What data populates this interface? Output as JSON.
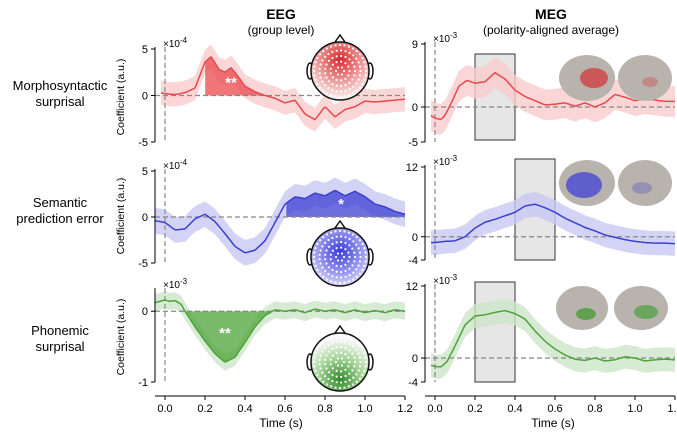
{
  "figure": {
    "columns": [
      {
        "title": "EEG",
        "subtitle": "(group level)"
      },
      {
        "title": "MEG",
        "subtitle": "(polarity-aligned average)"
      }
    ],
    "rows": [
      {
        "label_line1": "Morphosyntactic",
        "label_line2": "surprisal"
      },
      {
        "label_line1": "Semantic",
        "label_line2": "prediction error"
      },
      {
        "label_line1": "Phonemic",
        "label_line2": "surprisal"
      }
    ],
    "xlabel": "Time (s)",
    "ylabel": "Coefficient (a.u.)",
    "x_ticks": [
      "0.0",
      "0.2",
      "0.4",
      "0.6",
      "0.8",
      "1.0",
      "1.2"
    ],
    "x_tick_values": [
      0,
      0.2,
      0.4,
      0.6,
      0.8,
      1.0,
      1.2
    ],
    "colors": {
      "red": "#e8484c",
      "blue": "#3b3fd1",
      "green": "#4ea33a",
      "window_fill": "#e6e6e6",
      "zero_line": "#888888"
    }
  },
  "chart_data": [
    {
      "id": "eeg_morpho",
      "type": "line",
      "color": "red",
      "exponent_label": "×10",
      "exponent": "-4",
      "ylim": [
        -5,
        5
      ],
      "y_ticks": [
        -5,
        0,
        5
      ],
      "y_tick_labels": [
        "-5",
        "0",
        "5"
      ],
      "x": [
        -0.02,
        0.0,
        0.05,
        0.1,
        0.15,
        0.2,
        0.23,
        0.27,
        0.3,
        0.33,
        0.36,
        0.4,
        0.45,
        0.5,
        0.55,
        0.6,
        0.65,
        0.7,
        0.75,
        0.8,
        0.85,
        0.9,
        0.95,
        1.0,
        1.05,
        1.1,
        1.15,
        1.2
      ],
      "y": [
        0.3,
        0.2,
        0.1,
        0.3,
        0.8,
        3.6,
        4.2,
        2.8,
        2.5,
        3.0,
        2.2,
        1.0,
        0.4,
        0.0,
        -0.3,
        -0.8,
        -0.5,
        -2.0,
        -2.6,
        -1.2,
        -2.3,
        -1.5,
        -1.2,
        -0.6,
        -0.7,
        -0.6,
        -0.5,
        -0.4
      ],
      "band_halfwidth": 1.3,
      "sig_windows": [
        [
          0.2,
          0.5
        ]
      ],
      "sig_label": "**",
      "sig_label_x": 0.33,
      "sig_label_y": 1.3
    },
    {
      "id": "eeg_semantic",
      "type": "line",
      "color": "blue",
      "exponent_label": "×10",
      "exponent": "-4",
      "ylim": [
        -5,
        5
      ],
      "y_ticks": [
        -5,
        0,
        5
      ],
      "y_tick_labels": [
        "-5",
        "0",
        "5"
      ],
      "x": [
        -0.05,
        0.0,
        0.05,
        0.1,
        0.15,
        0.2,
        0.25,
        0.3,
        0.35,
        0.4,
        0.45,
        0.5,
        0.55,
        0.6,
        0.65,
        0.7,
        0.75,
        0.8,
        0.85,
        0.9,
        0.95,
        1.0,
        1.05,
        1.1,
        1.15,
        1.2
      ],
      "y": [
        -0.4,
        -0.6,
        -1.4,
        -1.3,
        -0.2,
        0.3,
        -0.5,
        -1.8,
        -3.2,
        -3.9,
        -3.6,
        -2.6,
        -0.6,
        1.4,
        2.2,
        2.0,
        2.6,
        2.3,
        2.9,
        2.3,
        2.8,
        2.2,
        1.4,
        1.1,
        0.6,
        0.3
      ],
      "band_halfwidth": 1.4,
      "sig_windows": [
        [
          0.6,
          1.2
        ]
      ],
      "sig_label": "*",
      "sig_label_x": 0.88,
      "sig_label_y": 1.3
    },
    {
      "id": "eeg_phonemic",
      "type": "line",
      "color": "green",
      "exponent_label": "×10",
      "exponent": "-3",
      "ylim": [
        -1,
        0.3
      ],
      "y_ticks": [
        -1,
        0
      ],
      "y_tick_labels": [
        "-1",
        "0"
      ],
      "x": [
        -0.05,
        0.0,
        0.02,
        0.05,
        0.08,
        0.1,
        0.15,
        0.2,
        0.25,
        0.3,
        0.35,
        0.4,
        0.45,
        0.5,
        0.55,
        0.6,
        0.65,
        0.7,
        0.75,
        0.8,
        0.85,
        0.9,
        0.95,
        1.0,
        1.05,
        1.1,
        1.15,
        1.2
      ],
      "y": [
        0.12,
        0.16,
        0.14,
        0.15,
        0.1,
        0.0,
        -0.22,
        -0.42,
        -0.6,
        -0.72,
        -0.65,
        -0.44,
        -0.22,
        -0.06,
        0.02,
        0.0,
        0.02,
        -0.02,
        0.03,
        0.0,
        0.02,
        -0.02,
        0.02,
        -0.02,
        0.01,
        -0.02,
        0.02,
        0.0
      ],
      "band_halfwidth": 0.12,
      "sig_windows": [
        [
          0.1,
          0.55
        ]
      ],
      "sig_label": "**",
      "sig_label_x": 0.3,
      "sig_label_y": -0.32
    },
    {
      "id": "meg_morpho",
      "type": "line",
      "color": "red",
      "exponent_label": "×10",
      "exponent": "-3",
      "ylim": [
        -5,
        9
      ],
      "y_ticks": [
        -5,
        0,
        9
      ],
      "y_tick_labels": [
        "-5",
        "0",
        "9"
      ],
      "x": [
        -0.02,
        0.0,
        0.03,
        0.05,
        0.08,
        0.12,
        0.16,
        0.2,
        0.25,
        0.3,
        0.35,
        0.4,
        0.45,
        0.5,
        0.55,
        0.6,
        0.65,
        0.7,
        0.75,
        0.8,
        0.85,
        0.9,
        0.95,
        1.0,
        1.05,
        1.1,
        1.15,
        1.2
      ],
      "y": [
        -1.2,
        -1.6,
        -1.8,
        -1.2,
        0.5,
        3.0,
        3.8,
        3.4,
        3.6,
        4.9,
        4.0,
        2.4,
        1.5,
        0.9,
        0.3,
        0.4,
        0.6,
        0.1,
        0.6,
        0.0,
        0.6,
        1.8,
        1.4,
        0.9,
        1.2,
        1.0,
        0.8,
        0.8
      ],
      "band_halfwidth": 2.2,
      "window": [
        0.2,
        0.4
      ]
    },
    {
      "id": "meg_semantic",
      "type": "line",
      "color": "blue",
      "exponent_label": "×10",
      "exponent": "-3",
      "ylim": [
        -4,
        12
      ],
      "y_ticks": [
        -4,
        0,
        12
      ],
      "y_tick_labels": [
        "-4",
        "0",
        "12"
      ],
      "x": [
        -0.02,
        0.0,
        0.05,
        0.1,
        0.15,
        0.2,
        0.25,
        0.3,
        0.35,
        0.4,
        0.45,
        0.5,
        0.55,
        0.6,
        0.65,
        0.7,
        0.75,
        0.8,
        0.85,
        0.9,
        0.95,
        1.0,
        1.05,
        1.1,
        1.15,
        1.2
      ],
      "y": [
        -1.0,
        -1.0,
        -0.8,
        -0.7,
        0.0,
        1.5,
        2.5,
        3.0,
        3.6,
        4.2,
        5.3,
        5.6,
        5.0,
        4.2,
        3.2,
        2.4,
        1.6,
        1.0,
        0.3,
        -0.1,
        -0.5,
        -0.8,
        -1.0,
        -1.1,
        -1.1,
        -1.2
      ],
      "band_halfwidth": 2.1,
      "window": [
        0.4,
        0.6
      ]
    },
    {
      "id": "meg_phonemic",
      "type": "line",
      "color": "green",
      "exponent_label": "×10",
      "exponent": "-3",
      "ylim": [
        -4,
        12
      ],
      "y_ticks": [
        -4,
        0,
        12
      ],
      "y_tick_labels": [
        "-4",
        "0",
        "12"
      ],
      "x": [
        -0.02,
        0.0,
        0.03,
        0.06,
        0.1,
        0.15,
        0.2,
        0.25,
        0.3,
        0.35,
        0.4,
        0.45,
        0.5,
        0.55,
        0.6,
        0.65,
        0.7,
        0.75,
        0.8,
        0.85,
        0.9,
        0.95,
        1.0,
        1.05,
        1.1,
        1.15,
        1.2
      ],
      "y": [
        -1.2,
        -1.4,
        -1.5,
        -0.6,
        2.0,
        5.5,
        7.0,
        7.2,
        7.6,
        7.9,
        7.4,
        6.5,
        4.5,
        2.8,
        1.5,
        0.5,
        -0.2,
        -0.4,
        0.0,
        -0.5,
        -0.3,
        0.2,
        0.0,
        -0.5,
        -0.3,
        -0.2,
        -0.3
      ],
      "band_halfwidth": 2.0,
      "window": [
        0.2,
        0.4
      ]
    }
  ]
}
